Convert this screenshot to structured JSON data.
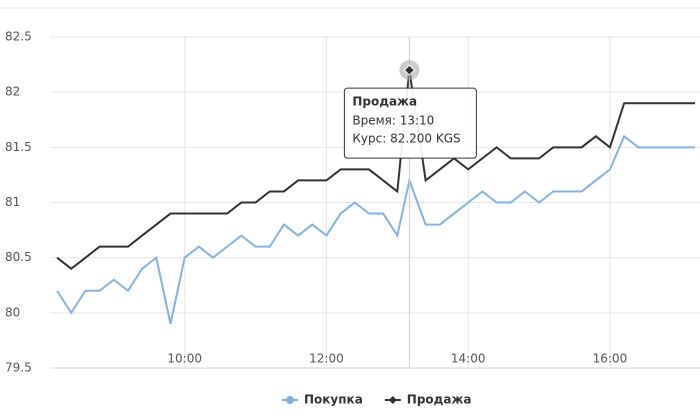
{
  "chart_data": {
    "type": "line",
    "x": [
      8.2,
      8.4,
      8.6,
      8.8,
      9.0,
      9.2,
      9.4,
      9.6,
      9.8,
      10.0,
      10.2,
      10.4,
      10.6,
      10.8,
      11.0,
      11.2,
      11.4,
      11.6,
      11.8,
      12.0,
      12.2,
      12.4,
      12.6,
      12.8,
      13.0,
      13.17,
      13.4,
      13.6,
      13.8,
      14.0,
      14.2,
      14.4,
      14.6,
      14.8,
      15.0,
      15.2,
      15.4,
      15.6,
      15.8,
      16.0,
      16.2,
      16.4,
      16.6,
      16.8,
      17.0,
      17.2
    ],
    "series": [
      {
        "name": "Покупка",
        "color": "#86b3dd",
        "values": [
          80.2,
          80.0,
          80.2,
          80.2,
          80.3,
          80.2,
          80.4,
          80.5,
          79.9,
          80.5,
          80.6,
          80.5,
          80.6,
          80.7,
          80.6,
          80.6,
          80.8,
          80.7,
          80.8,
          80.7,
          80.9,
          81.0,
          80.9,
          80.9,
          80.7,
          81.2,
          80.8,
          80.8,
          80.9,
          81.0,
          81.1,
          81.0,
          81.0,
          81.1,
          81.0,
          81.1,
          81.1,
          81.1,
          81.2,
          81.3,
          81.6,
          81.5,
          81.5,
          81.5,
          81.5,
          81.5
        ]
      },
      {
        "name": "Продажа",
        "color": "#333333",
        "values": [
          80.5,
          80.4,
          80.5,
          80.6,
          80.6,
          80.6,
          80.7,
          80.8,
          80.9,
          80.9,
          80.9,
          80.9,
          80.9,
          81.0,
          81.0,
          81.1,
          81.1,
          81.2,
          81.2,
          81.2,
          81.3,
          81.3,
          81.3,
          81.2,
          81.1,
          82.2,
          81.2,
          81.3,
          81.4,
          81.3,
          81.4,
          81.5,
          81.4,
          81.4,
          81.4,
          81.5,
          81.5,
          81.5,
          81.6,
          81.5,
          81.9,
          81.9,
          81.9,
          81.9,
          81.9,
          81.9
        ]
      }
    ],
    "xlim": [
      8.1,
      17.27
    ],
    "xticks": [
      {
        "value": 10,
        "label": "10:00"
      },
      {
        "value": 12,
        "label": "12:00"
      },
      {
        "value": 14,
        "label": "14:00"
      },
      {
        "value": 16,
        "label": "16:00"
      }
    ],
    "ylim": [
      79.5,
      82.5
    ],
    "yticks": [
      79.5,
      80,
      80.5,
      81,
      81.5,
      82,
      82.5
    ],
    "grid": true,
    "legend": "bottom",
    "tooltip": {
      "title": "Продажа",
      "lines": [
        "Время: 13:10",
        "Курс: 82.200 KGS"
      ]
    }
  }
}
